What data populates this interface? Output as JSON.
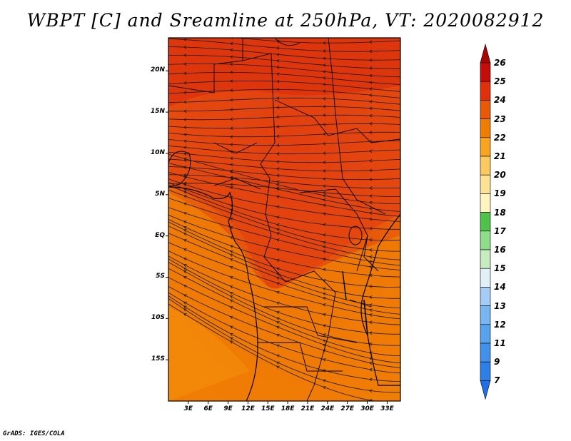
{
  "title": "WBPT [C] and Sreamline at 250hPa, VT: 2020082912",
  "credit": "GrADS: IGES/COLA",
  "map": {
    "variable": "WBPT [C]",
    "overlay": "Streamline",
    "level": "250hPa",
    "valid_time": "2020082912",
    "lon_range": [
      0,
      35
    ],
    "lat_range": [
      -20,
      24
    ],
    "lat_labels": [
      {
        "text": "20N",
        "lat": 20
      },
      {
        "text": "15N",
        "lat": 15
      },
      {
        "text": "10N",
        "lat": 10
      },
      {
        "text": "5N",
        "lat": 5
      },
      {
        "text": "EQ",
        "lat": 0
      },
      {
        "text": "5S",
        "lat": -5
      },
      {
        "text": "10S",
        "lat": -10
      },
      {
        "text": "15S",
        "lat": -15
      }
    ],
    "lon_labels": [
      {
        "text": "3E",
        "lon": 3
      },
      {
        "text": "6E",
        "lon": 6
      },
      {
        "text": "9E",
        "lon": 9
      },
      {
        "text": "12E",
        "lon": 12
      },
      {
        "text": "15E",
        "lon": 15
      },
      {
        "text": "18E",
        "lon": 18
      },
      {
        "text": "21E",
        "lon": 21
      },
      {
        "text": "24E",
        "lon": 24
      },
      {
        "text": "27E",
        "lon": 27
      },
      {
        "text": "30E",
        "lon": 30
      },
      {
        "text": "33E",
        "lon": 33
      }
    ]
  },
  "colorbar": {
    "labels": [
      "7",
      "9",
      "11",
      "12",
      "13",
      "14",
      "15",
      "16",
      "17",
      "18",
      "19",
      "20",
      "21",
      "22",
      "23",
      "24",
      "25",
      "26"
    ],
    "colors": [
      "#1f6fe6",
      "#2b7fe6",
      "#4190ea",
      "#58a2ee",
      "#78b6f2",
      "#a4ccf6",
      "#dff0f7",
      "#c6ecbf",
      "#8fdc8a",
      "#4fc24b",
      "#fff3bf",
      "#fde294",
      "#fbc95e",
      "#f8a41f",
      "#f07e05",
      "#e85a0a",
      "#e0300a",
      "#c40d0a",
      "#a80503"
    ]
  }
}
